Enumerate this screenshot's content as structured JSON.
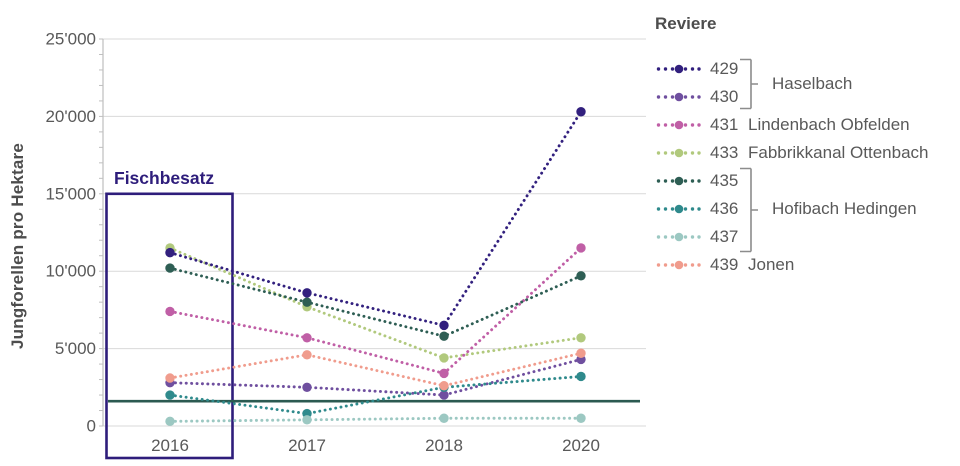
{
  "chart_data": {
    "type": "line",
    "title": "",
    "ylabel": "Jungforellen pro Hektare",
    "xlabel": "",
    "legend_title": "Reviere",
    "legend_position": "right",
    "grid": "horizontal",
    "line_style": "dotted",
    "x_categories": [
      "2016",
      "2017",
      "2018",
      "2020"
    ],
    "y_tick_labels": [
      "0",
      "5'000",
      "10'000",
      "15'000",
      "20'000",
      "25'000"
    ],
    "ylim": [
      0,
      25000
    ],
    "annotation_box": {
      "label": "Fischbesatz",
      "color": "#2e1d7b",
      "x_category": "2016",
      "y_top": 15000
    },
    "reference_line": {
      "value": 1600,
      "color": "#2b5a51"
    },
    "series": [
      {
        "id": "429",
        "group": "Haselbach",
        "color": "#32207e",
        "values": [
          11200,
          8600,
          6500,
          20300
        ]
      },
      {
        "id": "430",
        "group": "Haselbach",
        "color": "#6f4f9f",
        "values": [
          2800,
          2500,
          2000,
          4300
        ]
      },
      {
        "id": "431",
        "group": "Lindenbach Obfelden",
        "color": "#c05fa6",
        "values": [
          7400,
          5700,
          3400,
          11500
        ]
      },
      {
        "id": "433",
        "group": "Fabbrikkanal Ottenbach",
        "color": "#b1c97d",
        "values": [
          11500,
          7700,
          4400,
          5700
        ]
      },
      {
        "id": "435",
        "group": "Hofibach Hedingen",
        "color": "#2e5e54",
        "values": [
          10200,
          8000,
          5800,
          9700
        ]
      },
      {
        "id": "436",
        "group": "Hofibach Hedingen",
        "color": "#2f8a8c",
        "values": [
          2000,
          800,
          2500,
          3200
        ]
      },
      {
        "id": "437",
        "group": "Hofibach Hedingen",
        "color": "#9cc8c2",
        "values": [
          300,
          400,
          500,
          500
        ]
      },
      {
        "id": "439",
        "group": "Jonen",
        "color": "#f09c8d",
        "values": [
          3100,
          4600,
          2600,
          4700
        ]
      }
    ],
    "legend_groups": [
      {
        "name": "Haselbach",
        "members": [
          "429",
          "430"
        ],
        "bracket": true
      },
      {
        "name": "Lindenbach Obfelden",
        "members": [
          "431"
        ],
        "bracket": false
      },
      {
        "name": "Fabbrikkanal Ottenbach",
        "members": [
          "433"
        ],
        "bracket": false
      },
      {
        "name": "Hofibach Hedingen",
        "members": [
          "435",
          "436",
          "437"
        ],
        "bracket": true
      },
      {
        "name": "Jonen",
        "members": [
          "439"
        ],
        "bracket": false
      }
    ],
    "colors": {
      "gridline": "#d9d9d9",
      "axis": "#bfbfbf",
      "tick_text": "#595959",
      "title_text": "#4d4d4d"
    }
  }
}
